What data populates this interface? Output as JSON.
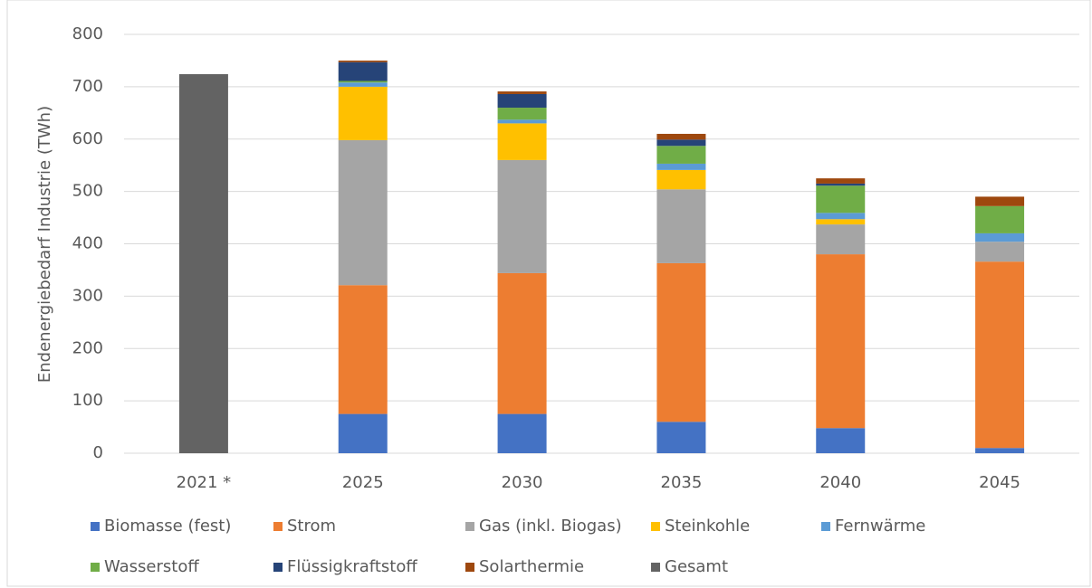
{
  "chart_data": {
    "type": "stacked_bar",
    "y_label": "Endenergiebedarf Industrie (TWh)",
    "categories": [
      "2021 *",
      "2025",
      "2030",
      "2035",
      "2040",
      "2045"
    ],
    "series": [
      {
        "name": "Biomasse (fest)",
        "color": "#4472c4",
        "values": [
          null,
          75,
          75,
          60,
          48,
          10
        ]
      },
      {
        "name": "Strom",
        "color": "#ed7d31",
        "values": [
          null,
          246,
          269,
          303,
          332,
          356
        ]
      },
      {
        "name": "Gas (inkl. Biogas)",
        "color": "#a5a5a5",
        "values": [
          null,
          277,
          216,
          141,
          57,
          38
        ]
      },
      {
        "name": "Steinkohle",
        "color": "#ffc000",
        "values": [
          null,
          102,
          70,
          37,
          10,
          0
        ]
      },
      {
        "name": "Fernwärme",
        "color": "#5b9bd5",
        "values": [
          null,
          8,
          7,
          12,
          12,
          16
        ]
      },
      {
        "name": "Wasserstoff",
        "color": "#70ad47",
        "values": [
          null,
          3,
          23,
          34,
          52,
          52
        ]
      },
      {
        "name": "Flüssigkraftstoff",
        "color": "#264478",
        "values": [
          null,
          36,
          26,
          12,
          4,
          0
        ]
      },
      {
        "name": "Solarthermie",
        "color": "#9e480e",
        "values": [
          null,
          3,
          5,
          11,
          10,
          18
        ]
      },
      {
        "name": "Gesamt",
        "color": "#636363",
        "values": [
          724,
          null,
          null,
          null,
          null,
          null
        ]
      }
    ],
    "ylim": [
      0,
      800
    ],
    "yticks": [
      0,
      100,
      200,
      300,
      400,
      500,
      600,
      700,
      800
    ],
    "grid": true,
    "legend": "bottom"
  }
}
